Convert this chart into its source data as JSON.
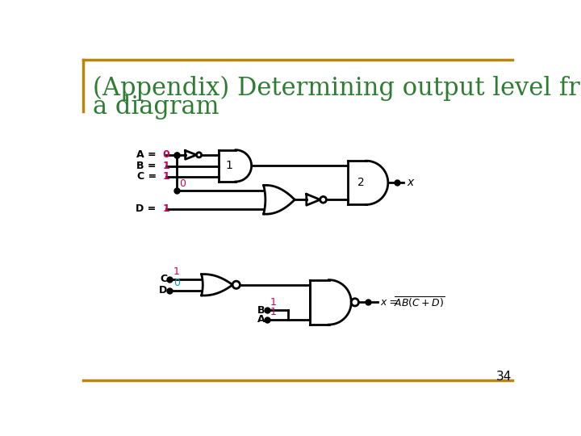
{
  "title_line1": "(Appendix) Determining output level from",
  "title_line2": "a diagram",
  "title_color": "#2E7D32",
  "title_fontsize": 22,
  "border_color": "#B8860B",
  "background_color": "#FFFFFF",
  "page_number": "34",
  "black": "#000000",
  "red": "#CC0055",
  "blue": "#0099CC",
  "lw": 2.0
}
